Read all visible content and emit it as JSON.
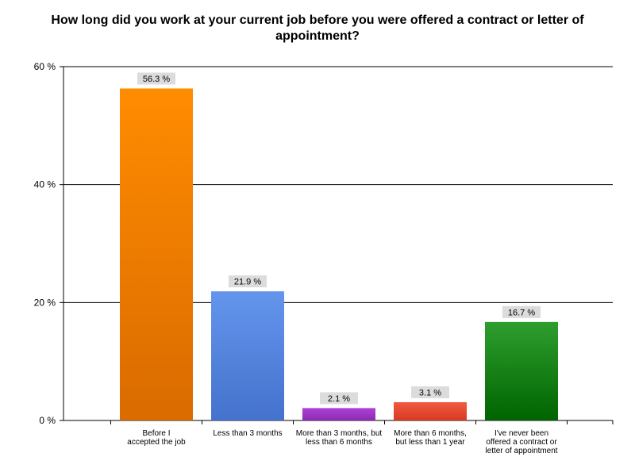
{
  "chart_data": {
    "type": "bar",
    "title": "How long did you work at your current job before you were offered a contract or letter of appointment?",
    "categories": [
      [
        "Before I",
        "accepted the job"
      ],
      [
        "Less than 3 months"
      ],
      [
        "More than 3 months, but",
        "less than 6 months"
      ],
      [
        "More than 6 months,",
        "but less than 1 year"
      ],
      [
        "I've never been",
        "offered a contract or",
        "letter of appointment"
      ]
    ],
    "values": [
      56.3,
      21.9,
      2.1,
      3.1,
      16.7
    ],
    "data_labels": [
      "56.3 %",
      "21.9 %",
      "2.1 %",
      "3.1 %",
      "16.7 %"
    ],
    "colors": [
      [
        "#ff8c00",
        "#d96b00"
      ],
      [
        "#6495ed",
        "#4472cc"
      ],
      [
        "#b040d8",
        "#8a2cb0"
      ],
      [
        "#f05a40",
        "#d83a22"
      ],
      [
        "#2e9e2e",
        "#006400"
      ]
    ],
    "ylim": [
      0,
      60
    ],
    "yticks": [
      0,
      20,
      40,
      60
    ],
    "ytick_labels": [
      "0 %",
      "20 %",
      "40 %",
      "60 %"
    ],
    "grid": true,
    "legend": "none"
  }
}
